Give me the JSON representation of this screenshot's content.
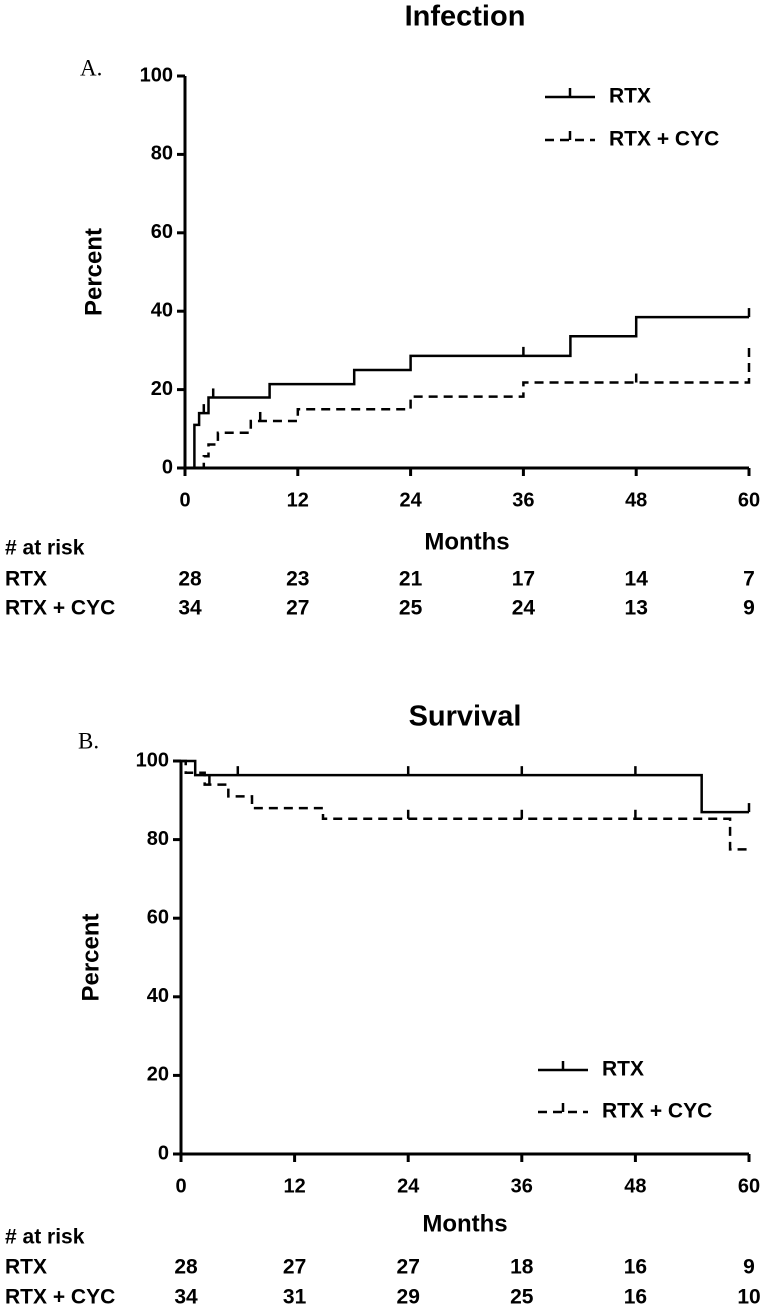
{
  "chart_data": [
    {
      "type": "step",
      "title": "Infection",
      "panel_label": "A.",
      "x_label": "Months",
      "y_label": "Percent",
      "xlim": [
        0,
        60
      ],
      "xticks": [
        0,
        12,
        24,
        36,
        48,
        60
      ],
      "ylim": [
        0,
        100
      ],
      "yticks": [
        0,
        20,
        40,
        60,
        80,
        100
      ],
      "legend": "upper right",
      "series": [
        {
          "name": "RTX",
          "color": "#000000",
          "style": "solid",
          "x": [
            0,
            1,
            1.5,
            2.5,
            9,
            18,
            24,
            41,
            48,
            60
          ],
          "values": [
            0,
            11,
            14,
            18,
            21.4,
            25,
            28.6,
            33.6,
            38.5,
            38.5
          ],
          "censored": [
            2,
            3,
            36,
            60
          ]
        },
        {
          "name": "RTX + CYC",
          "color": "#000000",
          "style": "dashed",
          "x": [
            0,
            2,
            2.5,
            3.5,
            7,
            12,
            24,
            36,
            60
          ],
          "values": [
            0,
            3,
            6,
            9,
            12,
            15,
            18.2,
            21.8,
            32
          ],
          "censored": [
            8,
            48
          ]
        }
      ],
      "risk_table": {
        "title": "# at risk",
        "rows": [
          {
            "name": "RTX",
            "counts": [
              28,
              23,
              21,
              17,
              14,
              7
            ]
          },
          {
            "name": "RTX + CYC",
            "counts": [
              34,
              27,
              25,
              24,
              13,
              9
            ]
          }
        ]
      }
    },
    {
      "type": "step",
      "title": "Survival",
      "panel_label": "B.",
      "x_label": "Months",
      "y_label": "Percent",
      "xlim": [
        0,
        60
      ],
      "xticks": [
        0,
        12,
        24,
        36,
        48,
        60
      ],
      "ylim": [
        0,
        100
      ],
      "yticks": [
        0,
        20,
        40,
        60,
        80,
        100
      ],
      "legend": "lower right",
      "series": [
        {
          "name": "RTX",
          "color": "#000000",
          "style": "solid",
          "x": [
            0,
            1.5,
            55,
            60
          ],
          "values": [
            100,
            96.4,
            87,
            87
          ],
          "censored": [
            6,
            24,
            36,
            48,
            60
          ]
        },
        {
          "name": "RTX + CYC",
          "color": "#000000",
          "style": "dashed",
          "x": [
            0,
            0.5,
            2.5,
            5,
            7.5,
            15,
            58,
            60
          ],
          "values": [
            100,
            97,
            94,
            91,
            88,
            85.3,
            77.5,
            77.5
          ],
          "censored": [
            3,
            24,
            36,
            48
          ]
        }
      ],
      "risk_table": {
        "title": "# at risk",
        "rows": [
          {
            "name": "RTX",
            "counts": [
              28,
              27,
              27,
              18,
              16,
              9
            ]
          },
          {
            "name": "RTX + CYC",
            "counts": [
              34,
              31,
              29,
              25,
              16,
              10
            ]
          }
        ]
      }
    }
  ]
}
